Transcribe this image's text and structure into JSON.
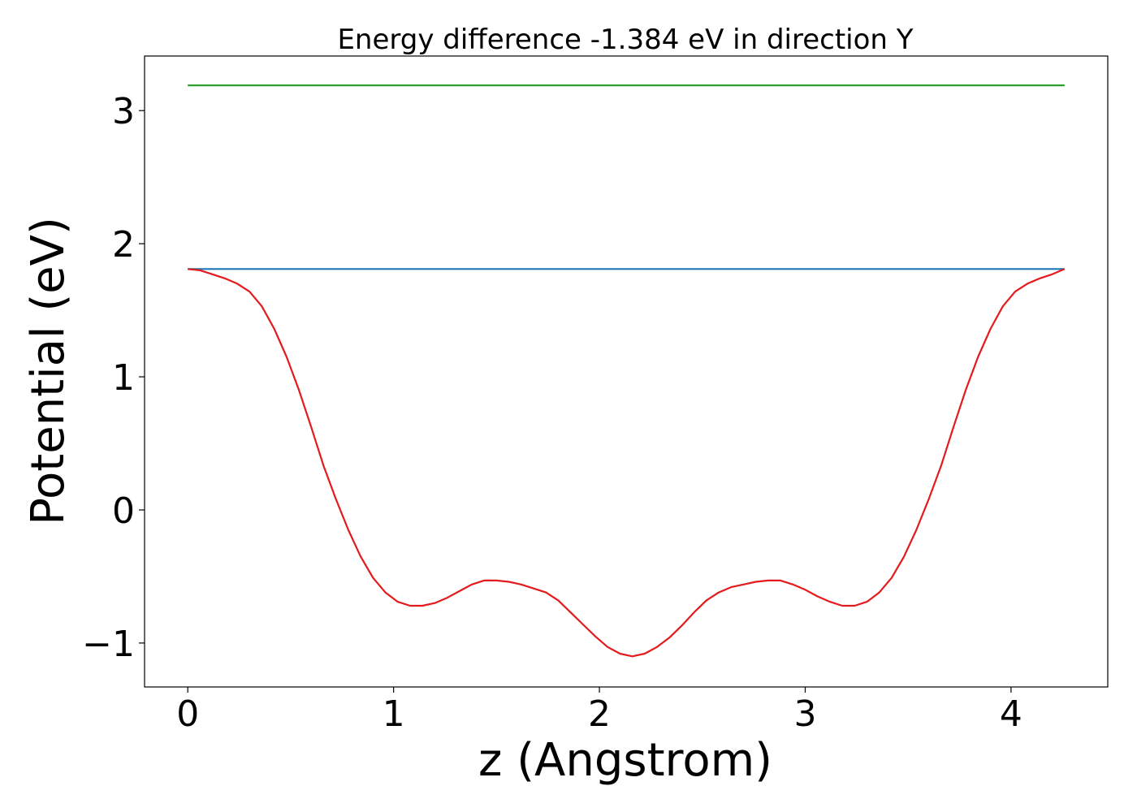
{
  "chart_data": {
    "type": "line",
    "title": "Energy difference -1.384 eV in direction Y",
    "xlabel": "z (Angstrom)",
    "ylabel": "Potential (eV)",
    "xlim": [
      -0.21,
      4.47
    ],
    "ylim": [
      -1.33,
      3.41
    ],
    "xticks": [
      0,
      1,
      2,
      3,
      4
    ],
    "yticks": [
      -1,
      0,
      1,
      2,
      3
    ],
    "xtick_labels": [
      "0",
      "1",
      "2",
      "3",
      "4"
    ],
    "ytick_labels": [
      "−1",
      "0",
      "1",
      "2",
      "3"
    ],
    "grid": false,
    "series": [
      {
        "color": "#2ca02c",
        "x": [
          0,
          4.26
        ],
        "y": [
          3.19,
          3.19
        ]
      },
      {
        "color": "#1f77b4",
        "x": [
          0,
          4.26
        ],
        "y": [
          1.81,
          1.81
        ]
      },
      {
        "color": "#e41a1c",
        "x": [
          0,
          0.06,
          0.12,
          0.18,
          0.24,
          0.3,
          0.36,
          0.42,
          0.48,
          0.54,
          0.6,
          0.66,
          0.72,
          0.78,
          0.84,
          0.9,
          0.96,
          1.02,
          1.08,
          1.14,
          1.2,
          1.26,
          1.32,
          1.38,
          1.44,
          1.5,
          1.56,
          1.62,
          1.68,
          1.74,
          1.8,
          1.86,
          1.92,
          1.98,
          2.04,
          2.1,
          2.16,
          2.22,
          2.28,
          2.34,
          2.4,
          2.46,
          2.52,
          2.58,
          2.64,
          2.7,
          2.76,
          2.82,
          2.88,
          2.94,
          3.0,
          3.06,
          3.12,
          3.18,
          3.24,
          3.3,
          3.36,
          3.42,
          3.48,
          3.54,
          3.6,
          3.66,
          3.72,
          3.78,
          3.84,
          3.9,
          3.96,
          4.02,
          4.08,
          4.14,
          4.2,
          4.26
        ],
        "y": [
          1.81,
          1.8,
          1.77,
          1.74,
          1.7,
          1.64,
          1.53,
          1.36,
          1.15,
          0.9,
          0.62,
          0.33,
          0.08,
          -0.15,
          -0.35,
          -0.51,
          -0.62,
          -0.69,
          -0.72,
          -0.72,
          -0.7,
          -0.66,
          -0.61,
          -0.56,
          -0.53,
          -0.53,
          -0.54,
          -0.56,
          -0.59,
          -0.62,
          -0.68,
          -0.77,
          -0.86,
          -0.95,
          -1.03,
          -1.08,
          -1.1,
          -1.08,
          -1.03,
          -0.96,
          -0.87,
          -0.77,
          -0.68,
          -0.62,
          -0.58,
          -0.56,
          -0.54,
          -0.53,
          -0.53,
          -0.56,
          -0.6,
          -0.65,
          -0.69,
          -0.72,
          -0.72,
          -0.69,
          -0.62,
          -0.51,
          -0.35,
          -0.15,
          0.08,
          0.33,
          0.62,
          0.9,
          1.15,
          1.36,
          1.53,
          1.64,
          1.7,
          1.74,
          1.77,
          1.81
        ]
      }
    ]
  }
}
